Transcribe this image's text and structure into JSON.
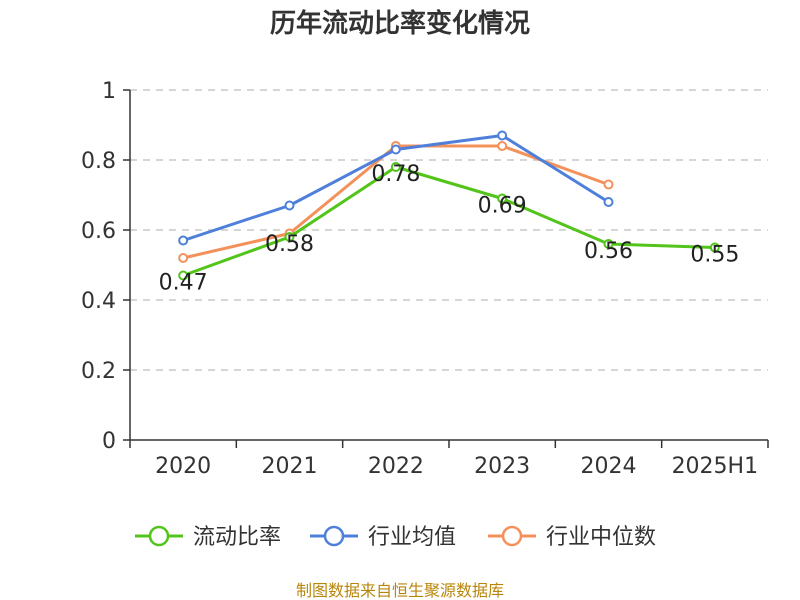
{
  "chart_data": {
    "type": "line",
    "title": "历年流动比率变化情况",
    "categories": [
      "2020",
      "2021",
      "2022",
      "2023",
      "2024",
      "2025H1"
    ],
    "yticks": [
      "0",
      "0.2",
      "0.4",
      "0.6",
      "0.8",
      "1"
    ],
    "ylim": [
      0,
      1
    ],
    "grid": true,
    "legend_position": "bottom",
    "series": [
      {
        "name": "流动比率",
        "color": "#52c41a",
        "values": [
          0.47,
          0.58,
          0.78,
          0.69,
          0.56,
          0.55
        ],
        "labels": [
          "0.47",
          "0.58",
          "0.78",
          "0.69",
          "0.56",
          "0.55"
        ]
      },
      {
        "name": "行业均值",
        "color": "#4e7fda",
        "values": [
          0.57,
          0.67,
          0.83,
          0.87,
          0.68,
          null
        ]
      },
      {
        "name": "行业中位数",
        "color": "#f4915b",
        "values": [
          0.52,
          0.59,
          0.84,
          0.84,
          0.73,
          null
        ]
      }
    ]
  },
  "footer": {
    "source": "制图数据来自恒生聚源数据库"
  }
}
